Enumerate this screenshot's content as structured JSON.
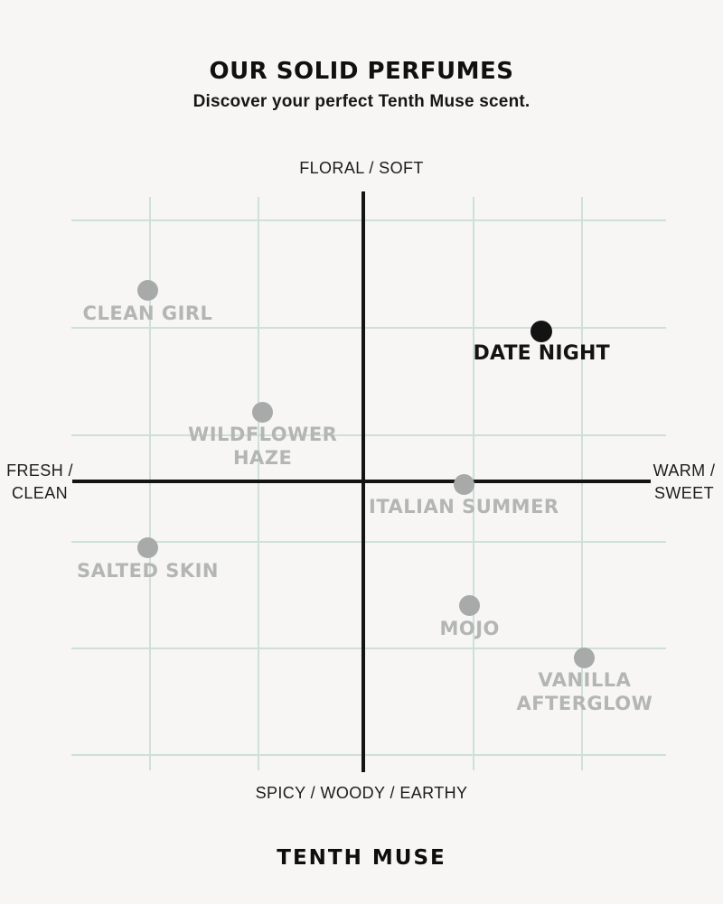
{
  "header": {
    "title": "OUR SOLID PERFUMES",
    "subtitle": "Discover your perfect Tenth Muse scent."
  },
  "footer": {
    "brand": "TENTH MUSE"
  },
  "chart_data": {
    "type": "scatter",
    "title": "OUR SOLID PERFUMES",
    "subtitle": "Discover your perfect Tenth Muse scent.",
    "axis_labels": {
      "top": "FLORAL / SOFT",
      "bottom": "SPICY / WOODY / EARTHY",
      "left_lines": [
        "FRESH /",
        "CLEAN"
      ],
      "right_lines": [
        "WARM /",
        "SWEET"
      ]
    },
    "x_axis": {
      "min": -1,
      "max": 1,
      "negative_meaning": "FRESH / CLEAN",
      "positive_meaning": "WARM / SWEET"
    },
    "y_axis": {
      "min": -1,
      "max": 1,
      "negative_meaning": "SPICY / WOODY / EARTHY",
      "positive_meaning": "FLORAL / SOFT"
    },
    "grid": true,
    "colors": {
      "background": "#f7f6f4",
      "grid": "#cde0da",
      "axis": "#141414",
      "dot_default": "#a7aaa9",
      "dot_emphasis": "#131313",
      "label_default": "#b3b6b4",
      "label_emphasis": "#131313"
    },
    "points": [
      {
        "name": "CLEAN GIRL",
        "label_lines": [
          "CLEAN GIRL"
        ],
        "x": -0.75,
        "y": 0.66,
        "emphasis": false
      },
      {
        "name": "DATE NIGHT",
        "label_lines": [
          "DATE NIGHT"
        ],
        "x": 0.62,
        "y": 0.52,
        "emphasis": true
      },
      {
        "name": "WILDFLOWER HAZE",
        "label_lines": [
          "WILDFLOWER",
          "HAZE"
        ],
        "x": -0.35,
        "y": 0.24,
        "emphasis": false
      },
      {
        "name": "ITALIAN SUMMER",
        "label_lines": [
          "ITALIAN SUMMER"
        ],
        "x": 0.35,
        "y": -0.01,
        "emphasis": false
      },
      {
        "name": "SALTED SKIN",
        "label_lines": [
          "SALTED SKIN"
        ],
        "x": -0.75,
        "y": -0.23,
        "emphasis": false
      },
      {
        "name": "MOJO",
        "label_lines": [
          "MOJO"
        ],
        "x": 0.37,
        "y": -0.43,
        "emphasis": false
      },
      {
        "name": "VANILLA AFTERGLOW",
        "label_lines": [
          "VANILLA",
          "AFTERGLOW"
        ],
        "x": 0.77,
        "y": -0.61,
        "emphasis": false
      }
    ]
  }
}
